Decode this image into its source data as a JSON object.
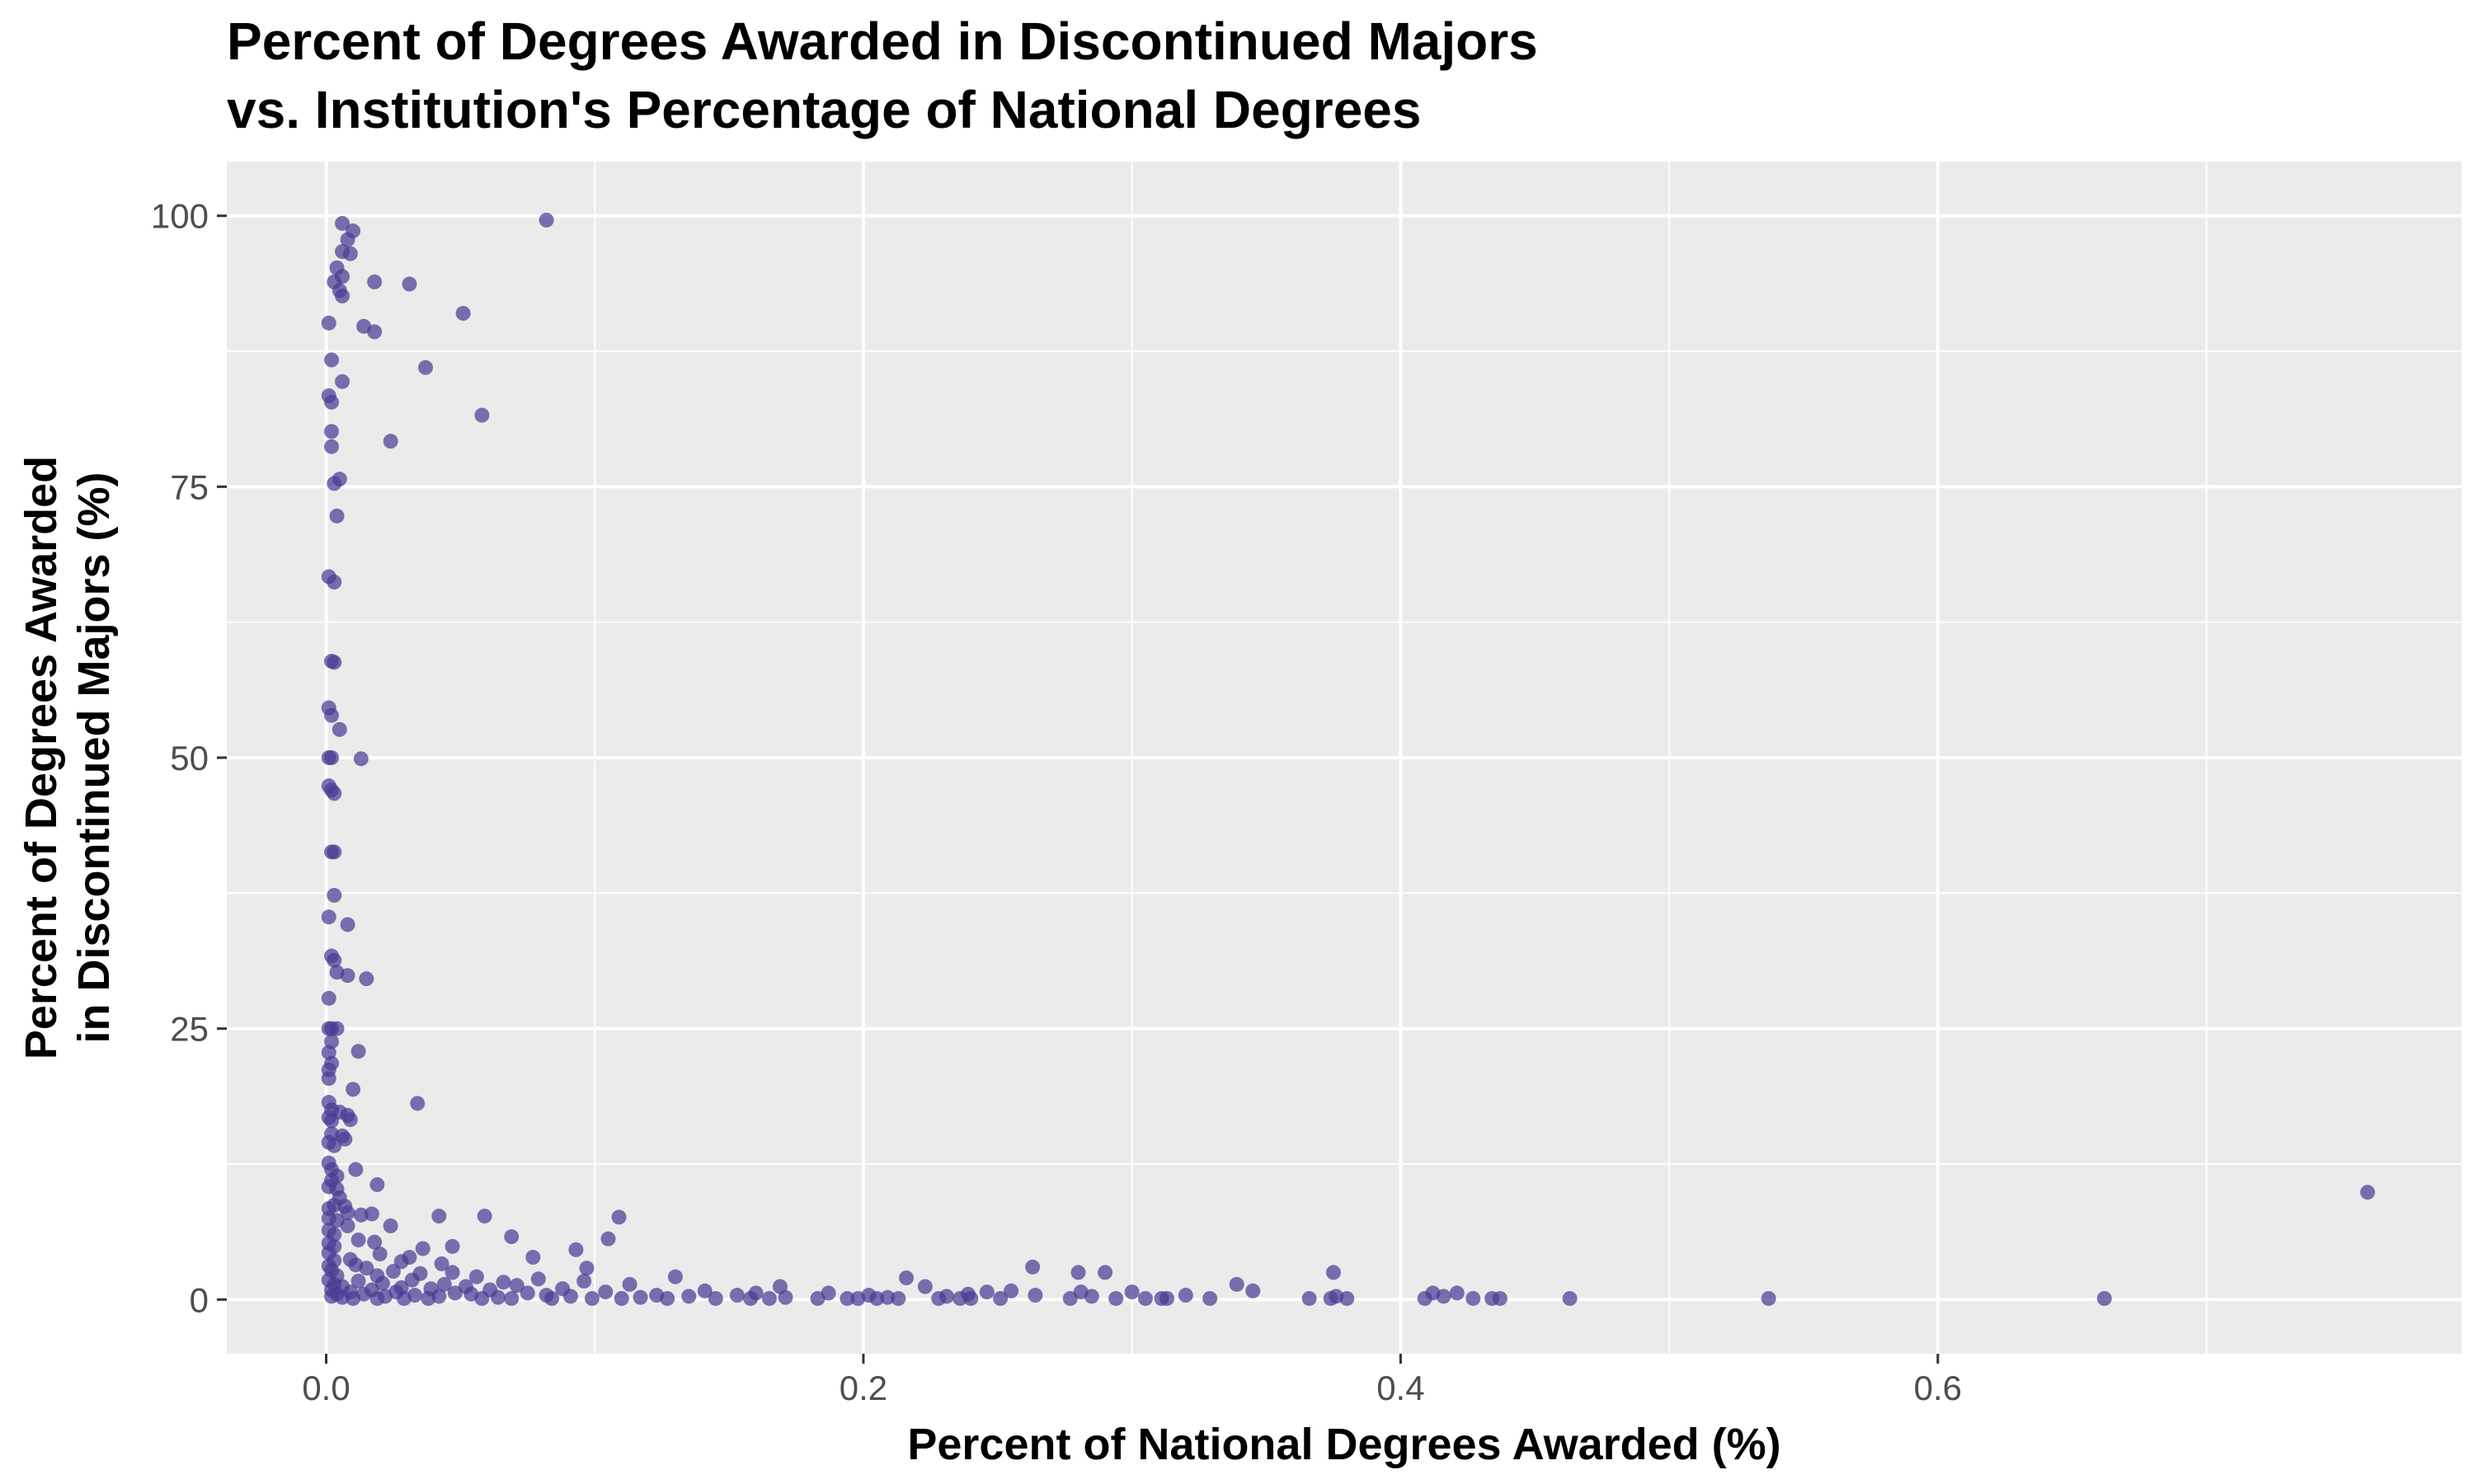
{
  "chart_data": {
    "type": "scatter",
    "title": [
      "Percent of Degrees Awarded in Discontinued Majors",
      "vs. Institution's Percentage of National Degrees"
    ],
    "xlabel": "Percent of National Degrees Awarded (%)",
    "ylabel": [
      "Percent of Degrees Awarded",
      "in Discontinued Majors (%)"
    ],
    "xlim": [
      -0.037,
      0.795
    ],
    "ylim": [
      -5,
      105
    ],
    "x_ticks": [
      0.0,
      0.2,
      0.4,
      0.6
    ],
    "x_tick_labels": [
      "0.0",
      "0.2",
      "0.4",
      "0.6"
    ],
    "x_minor_ticks": [
      0.1,
      0.3,
      0.5,
      0.7
    ],
    "y_ticks": [
      0,
      25,
      50,
      75,
      100
    ],
    "y_tick_labels": [
      "0",
      "25",
      "50",
      "75",
      "100"
    ],
    "y_minor_ticks": [
      12.5,
      37.5,
      62.5,
      87.5
    ],
    "grid": true,
    "legend": "none",
    "colors": {
      "panel": "#ebebeb",
      "grid": "#ffffff",
      "point": "#4b3a94"
    },
    "points": [
      [
        0.006,
        99.3
      ],
      [
        0.01,
        98.6
      ],
      [
        0.008,
        97.8
      ],
      [
        0.006,
        96.7
      ],
      [
        0.009,
        96.5
      ],
      [
        0.004,
        95.2
      ],
      [
        0.006,
        94.4
      ],
      [
        0.003,
        93.9
      ],
      [
        0.005,
        93.1
      ],
      [
        0.006,
        92.6
      ],
      [
        0.001,
        90.1
      ],
      [
        0.014,
        89.8
      ],
      [
        0.018,
        89.3
      ],
      [
        0.018,
        93.9
      ],
      [
        0.031,
        93.7
      ],
      [
        0.051,
        91.0
      ],
      [
        0.082,
        99.6
      ],
      [
        0.037,
        86.0
      ],
      [
        0.002,
        86.7
      ],
      [
        0.006,
        84.7
      ],
      [
        0.001,
        83.4
      ],
      [
        0.002,
        82.8
      ],
      [
        0.058,
        81.6
      ],
      [
        0.002,
        80.1
      ],
      [
        0.024,
        79.2
      ],
      [
        0.002,
        78.7
      ],
      [
        0.005,
        75.7
      ],
      [
        0.003,
        75.3
      ],
      [
        0.004,
        72.3
      ],
      [
        0.001,
        66.7
      ],
      [
        0.003,
        66.2
      ],
      [
        0.002,
        58.9
      ],
      [
        0.003,
        58.8
      ],
      [
        0.001,
        54.6
      ],
      [
        0.002,
        53.9
      ],
      [
        0.005,
        52.6
      ],
      [
        0.001,
        50.0
      ],
      [
        0.002,
        50.0
      ],
      [
        0.013,
        49.9
      ],
      [
        0.001,
        47.4
      ],
      [
        0.002,
        47.0
      ],
      [
        0.003,
        46.7
      ],
      [
        0.002,
        41.3
      ],
      [
        0.003,
        41.3
      ],
      [
        0.003,
        37.3
      ],
      [
        0.001,
        35.3
      ],
      [
        0.008,
        34.6
      ],
      [
        0.002,
        31.7
      ],
      [
        0.003,
        31.3
      ],
      [
        0.004,
        30.2
      ],
      [
        0.008,
        29.9
      ],
      [
        0.015,
        29.6
      ],
      [
        0.001,
        27.8
      ],
      [
        0.001,
        25.0
      ],
      [
        0.002,
        25.0
      ],
      [
        0.004,
        25.0
      ],
      [
        0.002,
        23.8
      ],
      [
        0.001,
        22.8
      ],
      [
        0.012,
        22.9
      ],
      [
        0.002,
        21.8
      ],
      [
        0.001,
        21.2
      ],
      [
        0.001,
        20.4
      ],
      [
        0.01,
        19.4
      ],
      [
        0.001,
        18.2
      ],
      [
        0.034,
        18.1
      ],
      [
        0.002,
        17.5
      ],
      [
        0.005,
        17.3
      ],
      [
        0.008,
        17.0
      ],
      [
        0.001,
        16.8
      ],
      [
        0.002,
        16.5
      ],
      [
        0.009,
        16.6
      ],
      [
        0.002,
        15.3
      ],
      [
        0.006,
        15.1
      ],
      [
        0.007,
        14.8
      ],
      [
        0.003,
        14.2
      ],
      [
        0.001,
        14.5
      ],
      [
        0.001,
        12.6
      ],
      [
        0.002,
        12.0
      ],
      [
        0.011,
        12.0
      ],
      [
        0.004,
        11.4
      ],
      [
        0.002,
        11.0
      ],
      [
        0.001,
        10.4
      ],
      [
        0.019,
        10.6
      ],
      [
        0.004,
        10.2
      ],
      [
        0.005,
        9.4
      ],
      [
        0.003,
        8.7
      ],
      [
        0.001,
        8.4
      ],
      [
        0.007,
        8.6
      ],
      [
        0.008,
        8.0
      ],
      [
        0.001,
        7.5
      ],
      [
        0.004,
        7.3
      ],
      [
        0.017,
        7.9
      ],
      [
        0.013,
        7.8
      ],
      [
        0.042,
        7.7
      ],
      [
        0.059,
        7.7
      ],
      [
        0.109,
        7.6
      ],
      [
        0.008,
        6.8
      ],
      [
        0.024,
        6.8
      ],
      [
        0.001,
        6.4
      ],
      [
        0.003,
        6.0
      ],
      [
        0.069,
        5.8
      ],
      [
        0.105,
        5.6
      ],
      [
        0.001,
        5.2
      ],
      [
        0.012,
        5.5
      ],
      [
        0.018,
        5.3
      ],
      [
        0.003,
        4.9
      ],
      [
        0.036,
        4.7
      ],
      [
        0.047,
        4.9
      ],
      [
        0.093,
        4.6
      ],
      [
        0.001,
        4.3
      ],
      [
        0.02,
        4.2
      ],
      [
        0.031,
        3.9
      ],
      [
        0.077,
        3.9
      ],
      [
        0.003,
        3.6
      ],
      [
        0.009,
        3.7
      ],
      [
        0.028,
        3.5
      ],
      [
        0.043,
        3.3
      ],
      [
        0.001,
        3.1
      ],
      [
        0.011,
        3.2
      ],
      [
        0.015,
        2.9
      ],
      [
        0.097,
        2.9
      ],
      [
        0.263,
        3.0
      ],
      [
        0.002,
        2.7
      ],
      [
        0.025,
        2.6
      ],
      [
        0.035,
        2.4
      ],
      [
        0.047,
        2.5
      ],
      [
        0.28,
        2.5
      ],
      [
        0.29,
        2.5
      ],
      [
        0.375,
        2.5
      ],
      [
        0.004,
        2.2
      ],
      [
        0.019,
        2.2
      ],
      [
        0.056,
        2.1
      ],
      [
        0.13,
        2.1
      ],
      [
        0.216,
        2.0
      ],
      [
        0.001,
        1.8
      ],
      [
        0.012,
        1.7
      ],
      [
        0.032,
        1.8
      ],
      [
        0.066,
        1.6
      ],
      [
        0.079,
        1.9
      ],
      [
        0.096,
        1.7
      ],
      [
        0.003,
        1.4
      ],
      [
        0.021,
        1.5
      ],
      [
        0.044,
        1.4
      ],
      [
        0.113,
        1.4
      ],
      [
        0.339,
        1.4
      ],
      [
        0.006,
        1.2
      ],
      [
        0.028,
        1.1
      ],
      [
        0.052,
        1.2
      ],
      [
        0.071,
        1.3
      ],
      [
        0.169,
        1.2
      ],
      [
        0.223,
        1.2
      ],
      [
        0.002,
        0.9
      ],
      [
        0.017,
        0.9
      ],
      [
        0.039,
        1.0
      ],
      [
        0.061,
        0.9
      ],
      [
        0.088,
        1.0
      ],
      [
        0.141,
        0.8
      ],
      [
        0.255,
        0.8
      ],
      [
        0.345,
        0.8
      ],
      [
        0.009,
        0.7
      ],
      [
        0.026,
        0.7
      ],
      [
        0.048,
        0.6
      ],
      [
        0.075,
        0.6
      ],
      [
        0.104,
        0.7
      ],
      [
        0.16,
        0.6
      ],
      [
        0.187,
        0.6
      ],
      [
        0.246,
        0.7
      ],
      [
        0.281,
        0.7
      ],
      [
        0.3,
        0.7
      ],
      [
        0.412,
        0.6
      ],
      [
        0.421,
        0.6
      ],
      [
        0.004,
        0.5
      ],
      [
        0.014,
        0.5
      ],
      [
        0.033,
        0.4
      ],
      [
        0.054,
        0.5
      ],
      [
        0.082,
        0.4
      ],
      [
        0.123,
        0.4
      ],
      [
        0.153,
        0.4
      ],
      [
        0.202,
        0.4
      ],
      [
        0.239,
        0.5
      ],
      [
        0.264,
        0.4
      ],
      [
        0.32,
        0.4
      ],
      [
        0.002,
        0.3
      ],
      [
        0.022,
        0.3
      ],
      [
        0.042,
        0.3
      ],
      [
        0.064,
        0.2
      ],
      [
        0.091,
        0.3
      ],
      [
        0.117,
        0.2
      ],
      [
        0.135,
        0.3
      ],
      [
        0.171,
        0.2
      ],
      [
        0.209,
        0.2
      ],
      [
        0.231,
        0.3
      ],
      [
        0.285,
        0.3
      ],
      [
        0.376,
        0.3
      ],
      [
        0.416,
        0.3
      ],
      [
        0.006,
        0.2
      ],
      [
        0.01,
        0.1
      ],
      [
        0.019,
        0.1
      ],
      [
        0.029,
        0.1
      ],
      [
        0.038,
        0.1
      ],
      [
        0.058,
        0.1
      ],
      [
        0.069,
        0.1
      ],
      [
        0.084,
        0.1
      ],
      [
        0.099,
        0.1
      ],
      [
        0.11,
        0.1
      ],
      [
        0.127,
        0.1
      ],
      [
        0.145,
        0.1
      ],
      [
        0.158,
        0.1
      ],
      [
        0.165,
        0.1
      ],
      [
        0.183,
        0.1
      ],
      [
        0.194,
        0.1
      ],
      [
        0.198,
        0.1
      ],
      [
        0.205,
        0.1
      ],
      [
        0.213,
        0.1
      ],
      [
        0.228,
        0.1
      ],
      [
        0.236,
        0.1
      ],
      [
        0.24,
        0.1
      ],
      [
        0.251,
        0.1
      ],
      [
        0.277,
        0.1
      ],
      [
        0.294,
        0.1
      ],
      [
        0.305,
        0.1
      ],
      [
        0.311,
        0.1
      ],
      [
        0.313,
        0.1
      ],
      [
        0.329,
        0.1
      ],
      [
        0.366,
        0.1
      ],
      [
        0.374,
        0.1
      ],
      [
        0.38,
        0.1
      ],
      [
        0.409,
        0.1
      ],
      [
        0.427,
        0.1
      ],
      [
        0.434,
        0.1
      ],
      [
        0.437,
        0.1
      ],
      [
        0.463,
        0.1
      ],
      [
        0.537,
        0.1
      ],
      [
        0.662,
        0.1
      ],
      [
        0.76,
        9.9
      ]
    ]
  }
}
